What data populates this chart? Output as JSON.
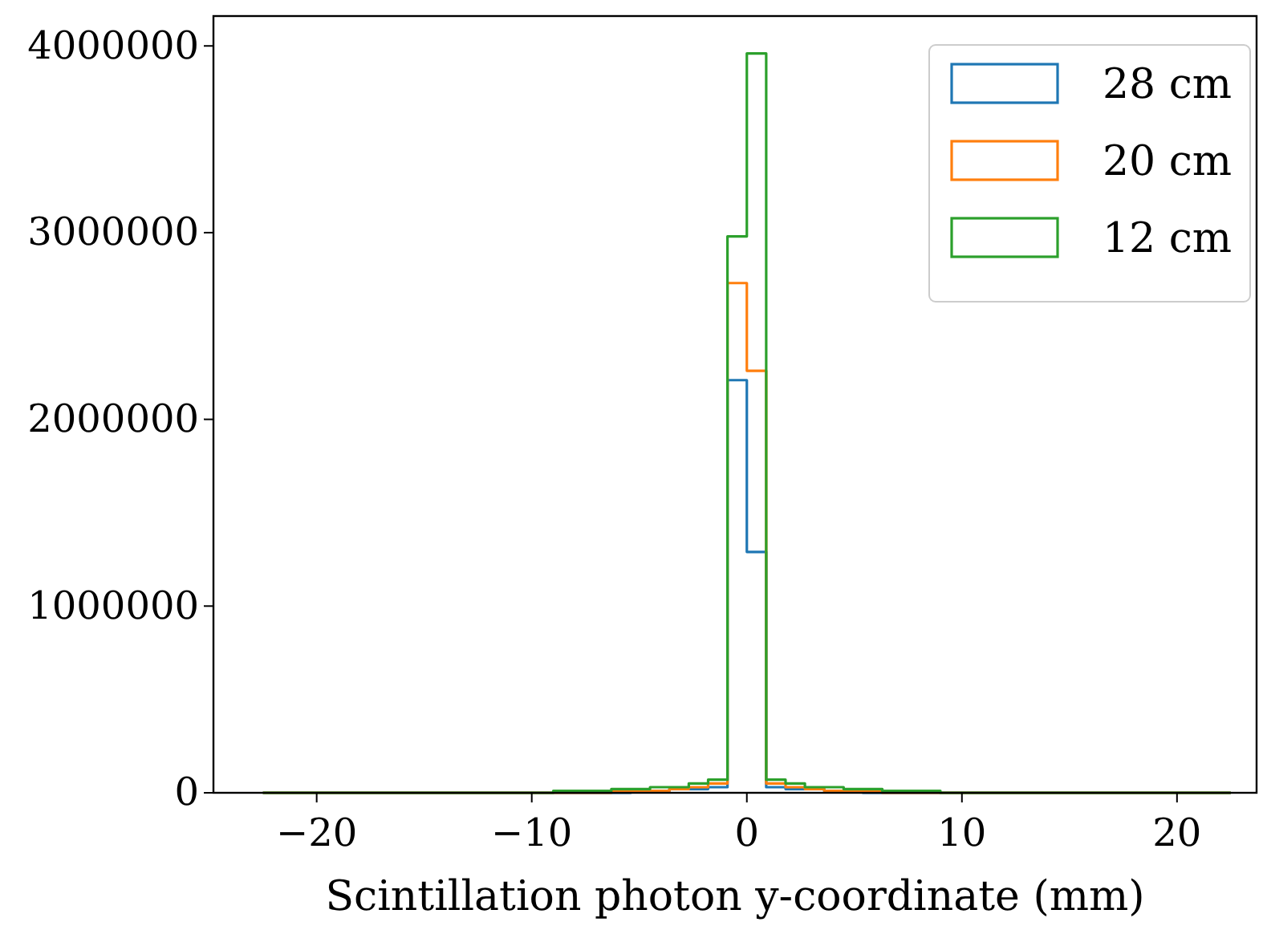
{
  "chart_data": {
    "type": "histogram",
    "xlabel": "Scintillation photon y-coordinate (mm)",
    "bins": [
      -22.5,
      -21.6,
      -20.7,
      -19.8,
      -18.9,
      -18,
      -17.1,
      -16.2,
      -15.3,
      -14.4,
      -13.5,
      -12.6,
      -11.7,
      -10.8,
      -9.9,
      -9,
      -8.1,
      -7.2,
      -6.3,
      -5.4,
      -4.5,
      -3.6,
      -2.7,
      -1.8,
      -0.9,
      0,
      0.9,
      1.8,
      2.7,
      3.6,
      4.5,
      5.4,
      6.3,
      7.2,
      8.1,
      9,
      9.9,
      10.8,
      11.7,
      12.6,
      13.5,
      14.4,
      15.3,
      16.2,
      17.1,
      18,
      18.9,
      19.8,
      20.7,
      21.6,
      22.5
    ],
    "series": [
      {
        "name": "28 cm",
        "color": "#1f77b4",
        "values": [
          0,
          0,
          0,
          0,
          0,
          0,
          0,
          0,
          0,
          0,
          0,
          0,
          0,
          0,
          0,
          0,
          0,
          0,
          0,
          10000,
          10000,
          20000,
          20000,
          30000,
          2210000,
          1290000,
          30000,
          20000,
          20000,
          10000,
          10000,
          0,
          0,
          0,
          0,
          0,
          0,
          0,
          0,
          0,
          0,
          0,
          0,
          0,
          0,
          0,
          0,
          0,
          0,
          0
        ]
      },
      {
        "name": "20 cm",
        "color": "#ff7f0e",
        "values": [
          0,
          0,
          0,
          0,
          0,
          0,
          0,
          0,
          0,
          0,
          0,
          0,
          0,
          0,
          0,
          0,
          0,
          0,
          10000,
          10000,
          10000,
          20000,
          30000,
          50000,
          2730000,
          2260000,
          50000,
          30000,
          20000,
          10000,
          10000,
          10000,
          0,
          0,
          0,
          0,
          0,
          0,
          0,
          0,
          0,
          0,
          0,
          0,
          0,
          0,
          0,
          0,
          0,
          0
        ]
      },
      {
        "name": "12 cm",
        "color": "#2ca02c",
        "values": [
          0,
          0,
          0,
          0,
          0,
          0,
          0,
          0,
          0,
          0,
          0,
          0,
          0,
          0,
          0,
          10000,
          10000,
          10000,
          20000,
          20000,
          30000,
          30000,
          50000,
          70000,
          2980000,
          3960000,
          70000,
          50000,
          30000,
          30000,
          20000,
          20000,
          10000,
          10000,
          10000,
          0,
          0,
          0,
          0,
          0,
          0,
          0,
          0,
          0,
          0,
          0,
          0,
          0,
          0,
          0
        ]
      }
    ],
    "xlim": [
      -24.8,
      23.7
    ],
    "xticks": [
      {
        "value": -20,
        "label": "−20"
      },
      {
        "value": -10,
        "label": "−10"
      },
      0,
      10,
      20
    ],
    "ylim": [
      0,
      4160000
    ],
    "yticks": [
      0,
      1000000,
      2000000,
      3000000,
      4000000
    ],
    "grid": false,
    "legend": "top right"
  }
}
